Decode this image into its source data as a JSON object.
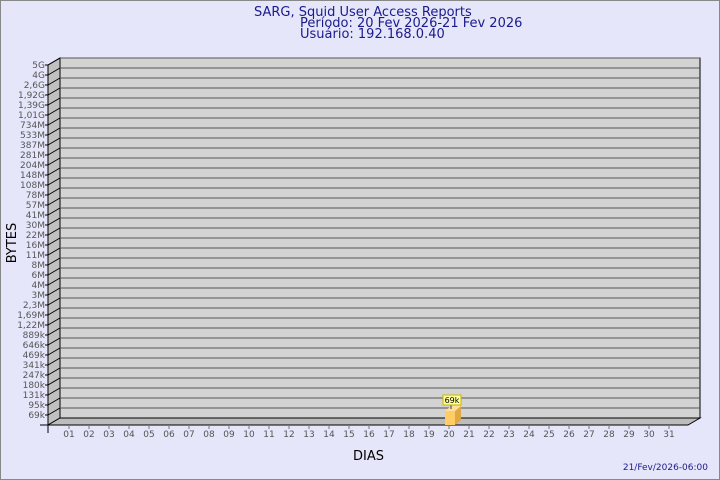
{
  "header": {
    "title": "SARG, Squid User Access Reports",
    "period": "Período: 20 Fev 2026-21 Fev 2026",
    "user": "Usuário: 192.168.0.40"
  },
  "footer": {
    "timestamp": "21/Fev/2026-06:00"
  },
  "colors": {
    "background": "#e6e6fa",
    "wall": "#d3d3d3",
    "side_wall": "#c0c0c0",
    "bar": "#ffcc66",
    "label_box": "#ffff99",
    "text": "#1a1a8c"
  },
  "chart_data": {
    "type": "bar",
    "xlabel": "DIAS",
    "ylabel": "BYTES",
    "y_scale": "log",
    "y_tick_labels": [
      "5G",
      "4G",
      "2,6G",
      "1,92G",
      "1,39G",
      "1,01G",
      "734M",
      "533M",
      "387M",
      "281M",
      "204M",
      "148M",
      "108M",
      "78M",
      "57M",
      "41M",
      "30M",
      "22M",
      "16M",
      "11M",
      "8M",
      "6M",
      "4M",
      "3M",
      "2,3M",
      "1,69M",
      "1,22M",
      "889k",
      "646k",
      "469k",
      "341k",
      "247k",
      "180k",
      "131k",
      "95k",
      "69k"
    ],
    "categories": [
      "01",
      "02",
      "03",
      "04",
      "05",
      "06",
      "07",
      "08",
      "09",
      "10",
      "11",
      "12",
      "13",
      "14",
      "15",
      "16",
      "17",
      "18",
      "19",
      "20",
      "21",
      "22",
      "23",
      "24",
      "25",
      "26",
      "27",
      "28",
      "29",
      "30",
      "31"
    ],
    "series": [
      {
        "points": [
          {
            "x": "20",
            "y": "69k",
            "label": "69k"
          }
        ]
      }
    ],
    "grid": true
  }
}
